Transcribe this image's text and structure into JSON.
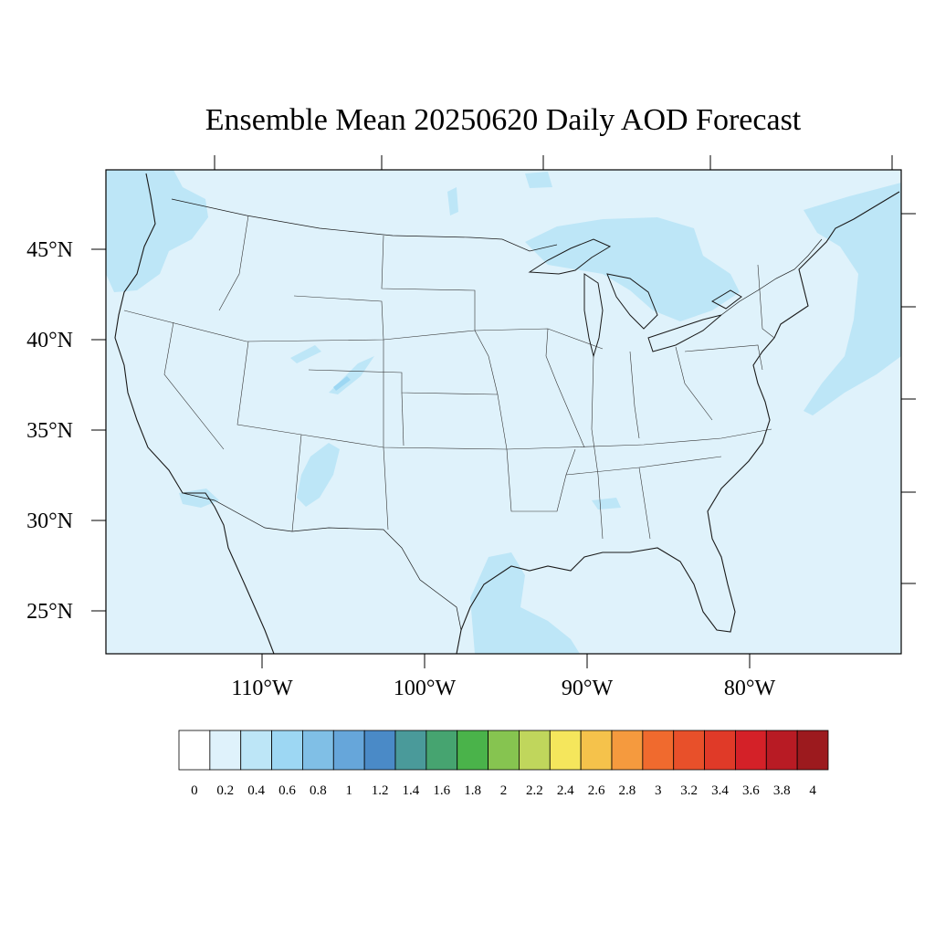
{
  "title": "Ensemble Mean 20250620 Daily AOD Forecast",
  "lat_labels": [
    "45°N",
    "40°N",
    "35°N",
    "30°N",
    "25°N"
  ],
  "lon_labels": [
    "110°W",
    "100°W",
    "90°W",
    "80°W"
  ],
  "colorbar": {
    "labels": [
      "0",
      "0.2",
      "0.4",
      "0.6",
      "0.8",
      "1",
      "1.2",
      "1.4",
      "1.6",
      "1.8",
      "2",
      "2.2",
      "2.4",
      "2.6",
      "2.8",
      "3",
      "3.2",
      "3.4",
      "3.6",
      "3.8",
      "4"
    ],
    "colors": [
      "#ffffff",
      "#dff2fb",
      "#bde6f7",
      "#9dd7f3",
      "#80bfe6",
      "#66a6da",
      "#4a8ac7",
      "#4a9a9a",
      "#46a470",
      "#4ab34a",
      "#86c450",
      "#c0d65c",
      "#f5e65c",
      "#f5c24b",
      "#f59a3e",
      "#f06a2e",
      "#e8502a",
      "#e03a28",
      "#d42128",
      "#b81b24",
      "#9c1a1e"
    ]
  },
  "map": {
    "background_color": "#dff2fb",
    "plume_color": "#bde6f7",
    "hotspot_color": "#9dd7f3",
    "line_color": "#1a1a1a"
  }
}
